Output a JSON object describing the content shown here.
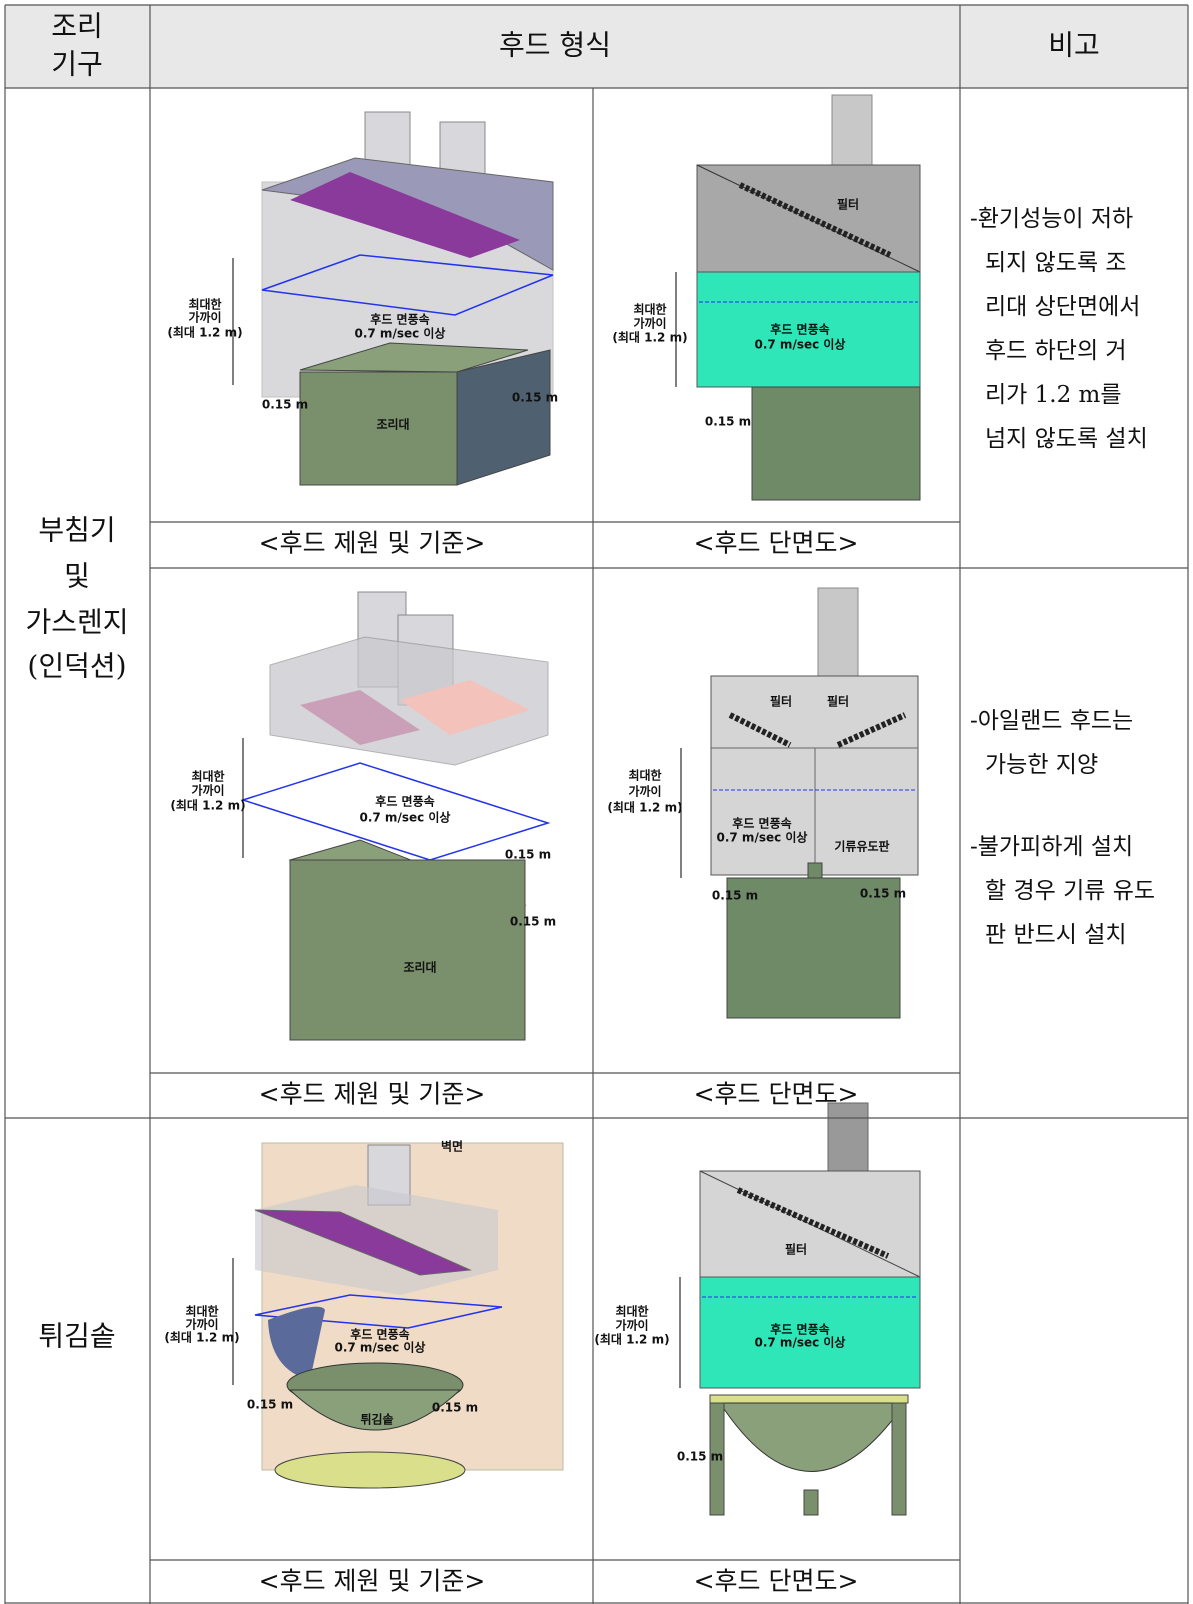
{
  "header": {
    "equipment": [
      "조리",
      "기구"
    ],
    "hood": "후드 형식",
    "remark": "비고"
  },
  "groups": [
    {
      "equipment": [
        "부침기",
        "및",
        "가스렌지",
        "(인덕션)"
      ],
      "rows": [
        {
          "panels": [
            {
              "caption": "<후드 제원 및 기준>",
              "labels": [
                "최대한",
                "가까이",
                "(최대 1.2 m)",
                "후드 면풍속",
                "0.7 m/sec 이상",
                "0.15 m",
                "0.15 m",
                "조리대"
              ]
            },
            {
              "caption": "<후드 단면도>",
              "labels": [
                "필터",
                "최대한",
                "가까이",
                "(최대 1.2 m)",
                "후드 면풍속",
                "0.7 m/sec 이상",
                "0.15 m"
              ]
            }
          ],
          "note": [
            [
              "-환기성능이 저하",
              "되지 않도록 조",
              "리대 상단면에서",
              "후드 하단의 거",
              "리가 1.2 m를",
              "넘지 않도록 설치"
            ]
          ]
        },
        {
          "panels": [
            {
              "caption": "<후드 제원 및 기준>",
              "labels": [
                "최대한",
                "가까이",
                "(최대 1.2 m)",
                "후드 면풍속",
                "0.7 m/sec 이상",
                "0.15 m",
                "0.15 m",
                "조리대"
              ]
            },
            {
              "caption": "<후드 단면도>",
              "labels": [
                "필터",
                "필터",
                "최대한",
                "가까이",
                "(최대 1.2 m)",
                "후드 면풍속",
                "0.7 m/sec 이상",
                "기류유도판",
                "0.15 m",
                "0.15 m"
              ]
            }
          ],
          "note": [
            [
              "-아일랜드 후드는",
              "가능한 지양"
            ],
            [
              "-불가피하게 설치",
              "할 경우 기류 유도",
              "판 반드시 설치"
            ]
          ]
        }
      ]
    },
    {
      "equipment": [
        "튀김솥"
      ],
      "rows": [
        {
          "panels": [
            {
              "caption": "<후드 제원 및 기준>",
              "labels": [
                "벽면",
                "최대한",
                "가까이",
                "(최대 1.2 m)",
                "후드 면풍속",
                "0.7 m/sec 이상",
                "0.15 m",
                "0.15 m",
                "튀김솥"
              ]
            },
            {
              "caption": "<후드 단면도>",
              "labels": [
                "필터",
                "최대한",
                "가까이",
                "(최대 1.2 m)",
                "후드 면풍속",
                "0.7 m/sec 이상",
                "0.15 m"
              ]
            }
          ]
        }
      ]
    }
  ]
}
